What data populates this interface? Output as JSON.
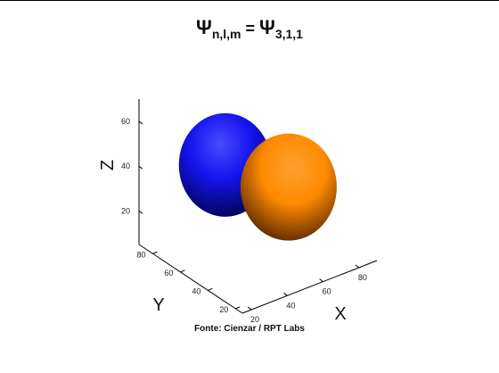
{
  "chart_data": {
    "type": "surface3d",
    "title": {
      "symbol": "Ψ",
      "left_sub": "n,l,m",
      "equals": "=",
      "right_sub": "3,1,1"
    },
    "xlabel": "X",
    "ylabel": "Y",
    "zlabel": "Z",
    "x_ticks": [
      "20",
      "40",
      "60",
      "80"
    ],
    "y_ticks": [
      "20",
      "40",
      "60",
      "80"
    ],
    "z_ticks": [
      "20",
      "40",
      "60"
    ],
    "xlim": [
      15,
      90
    ],
    "ylim": [
      15,
      90
    ],
    "zlim": [
      5,
      70
    ],
    "series": [
      {
        "color": "#1010ff",
        "center": [
          40,
          60,
          45
        ]
      },
      {
        "color": "#ff8c00",
        "center": [
          60,
          40,
          37
        ]
      }
    ],
    "caption": "Fonte: Cienzar / RPT Labs"
  }
}
